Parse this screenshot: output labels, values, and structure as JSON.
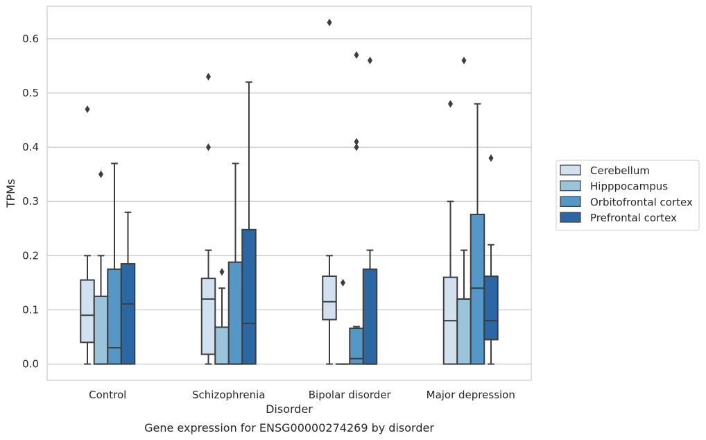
{
  "chart_data": {
    "type": "box",
    "title": "",
    "caption": "Gene expression for ENSG00000274269 by disorder",
    "xlabel": "Disorder",
    "ylabel": "TPMs",
    "ylim": [
      -0.03,
      0.66
    ],
    "yticks": [
      0.0,
      0.1,
      0.2,
      0.3,
      0.4,
      0.5,
      0.6
    ],
    "ytick_labels": [
      "0.0",
      "0.1",
      "0.2",
      "0.3",
      "0.4",
      "0.5",
      "0.6"
    ],
    "categories": [
      "Control",
      "Schizophrenia",
      "Bipolar disorder",
      "Major depression"
    ],
    "grid": "horizontal",
    "legend_placement": "right",
    "series": [
      {
        "name": "Cerebellum",
        "color": "#d1e1f0",
        "boxes": [
          {
            "whislo": 0.0,
            "q1": 0.04,
            "med": 0.09,
            "q3": 0.155,
            "whishi": 0.2,
            "fliers": [
              0.47
            ]
          },
          {
            "whislo": 0.0,
            "q1": 0.018,
            "med": 0.12,
            "q3": 0.158,
            "whishi": 0.21,
            "fliers": [
              0.4,
              0.53
            ]
          },
          {
            "whislo": 0.0,
            "q1": 0.082,
            "med": 0.115,
            "q3": 0.162,
            "whishi": 0.2,
            "fliers": [
              0.63
            ]
          },
          {
            "whislo": 0.0,
            "q1": 0.0,
            "med": 0.08,
            "q3": 0.16,
            "whishi": 0.3,
            "fliers": [
              0.48
            ]
          }
        ]
      },
      {
        "name": "Hipppocampus",
        "color": "#9ac4dc",
        "boxes": [
          {
            "whislo": 0.0,
            "q1": 0.0,
            "med": 0.0,
            "q3": 0.125,
            "whishi": 0.2,
            "fliers": [
              0.35
            ]
          },
          {
            "whislo": 0.0,
            "q1": 0.0,
            "med": 0.0,
            "q3": 0.068,
            "whishi": 0.14,
            "fliers": [
              0.17
            ]
          },
          {
            "whislo": 0.0,
            "q1": 0.0,
            "med": 0.0,
            "q3": 0.0,
            "whishi": 0.0,
            "fliers": [
              0.15
            ]
          },
          {
            "whislo": 0.0,
            "q1": 0.0,
            "med": 0.12,
            "q3": 0.12,
            "whishi": 0.21,
            "fliers": [
              0.56
            ]
          }
        ]
      },
      {
        "name": "Orbitofrontal cortex",
        "color": "#5597c6",
        "boxes": [
          {
            "whislo": 0.0,
            "q1": 0.0,
            "med": 0.03,
            "q3": 0.175,
            "whishi": 0.37,
            "fliers": []
          },
          {
            "whislo": 0.0,
            "q1": 0.0,
            "med": 0.0,
            "q3": 0.188,
            "whishi": 0.37,
            "fliers": []
          },
          {
            "whislo": 0.0,
            "q1": 0.0,
            "med": 0.01,
            "q3": 0.066,
            "whishi": 0.069,
            "fliers": [
              0.4,
              0.41,
              0.57
            ]
          },
          {
            "whislo": 0.0,
            "q1": 0.0,
            "med": 0.14,
            "q3": 0.276,
            "whishi": 0.48,
            "fliers": []
          }
        ]
      },
      {
        "name": "Prefrontal cortex",
        "color": "#2a67a4",
        "boxes": [
          {
            "whislo": 0.0,
            "q1": 0.0,
            "med": 0.111,
            "q3": 0.185,
            "whishi": 0.28,
            "fliers": []
          },
          {
            "whislo": 0.0,
            "q1": 0.0,
            "med": 0.075,
            "q3": 0.248,
            "whishi": 0.52,
            "fliers": []
          },
          {
            "whislo": 0.0,
            "q1": 0.0,
            "med": 0.0,
            "q3": 0.175,
            "whishi": 0.21,
            "fliers": [
              0.56
            ]
          },
          {
            "whislo": 0.0,
            "q1": 0.045,
            "med": 0.08,
            "q3": 0.162,
            "whishi": 0.22,
            "fliers": [
              0.38
            ]
          }
        ]
      }
    ]
  }
}
